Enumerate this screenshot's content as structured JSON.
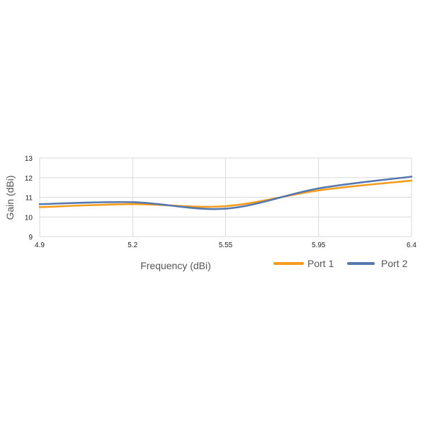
{
  "chart_data": {
    "type": "line",
    "xlabel": "Frequency (dBi)",
    "ylabel": "Gain (dBi)",
    "x_ticks": [
      "4.9",
      "5.2",
      "5.55",
      "5.95",
      "6.4"
    ],
    "y_ticks": [
      "9",
      "10",
      "11",
      "12",
      "13"
    ],
    "ylim": [
      9,
      13
    ],
    "grid": true,
    "legend_position": "bottom-right",
    "series": [
      {
        "name": "Port 1",
        "color": "#F39C1E",
        "points": [
          [
            4.9,
            10.5
          ],
          [
            5.2,
            10.65
          ],
          [
            5.55,
            10.55
          ],
          [
            5.95,
            11.35
          ],
          [
            6.4,
            11.85
          ]
        ]
      },
      {
        "name": "Port 2",
        "color": "#5578AE",
        "points": [
          [
            4.9,
            10.65
          ],
          [
            5.2,
            10.75
          ],
          [
            5.55,
            10.42
          ],
          [
            5.95,
            11.45
          ],
          [
            6.4,
            12.05
          ]
        ]
      }
    ]
  }
}
